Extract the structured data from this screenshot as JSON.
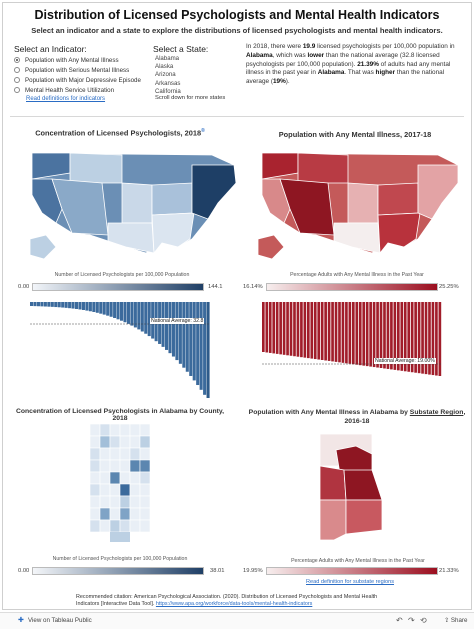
{
  "header": {
    "title": "Distribution of Licensed Psychologists and Mental Health Indicators",
    "subtitle": "Select an indicator and a state to explore the distributions of licensed psychologists and mental health indicators."
  },
  "indicator_panel": {
    "heading": "Select an Indicator:",
    "options": [
      {
        "label": "Population with Any Mental Illness",
        "selected": true
      },
      {
        "label": "Population with Serious Mental Illness",
        "selected": false
      },
      {
        "label": "Population with Major Depressive Episode",
        "selected": false
      },
      {
        "label": "Mental Health Service Utilization",
        "selected": false
      }
    ],
    "definitions_link": "Read definitions for indicators"
  },
  "state_panel": {
    "heading": "Select a State:",
    "states": [
      "Alabama",
      "Alaska",
      "Arizona",
      "Arkansas",
      "California"
    ],
    "scroll_note": "Scroll down for more states"
  },
  "summary": {
    "p1": "In 2018, there were ",
    "v1": "19.9",
    "p2": " licensed psychologists per 100,000 population in ",
    "state1": "Alabama",
    "p3": ", which was ",
    "cmp1": "lower",
    "p4": " than the national average (32.8 licensed psychologists per 100,000 population). ",
    "v2": "21.39%",
    "p5": " of adults had any mental illness in the past year in ",
    "state2": "Alabama",
    "p6": ". That was ",
    "cmp2": "higher",
    "p7": " than the national average (",
    "v3": "19%",
    "p8": ")."
  },
  "us_psych": {
    "title": "Concentration of Licensed Psychologists, 2018",
    "title_mark": "®",
    "legend_label": "Number of Licensed Psychologists per 100,000 Population",
    "min": "0.00",
    "max": "144.1",
    "avg_label": "National Average: 32.8",
    "color": "#2e5b8a"
  },
  "us_ami": {
    "title": "Population with Any Mental Illness, 2017-18",
    "legend_label": "Percentage Adults with Any Mental Illness in the Past Year",
    "min": "16.14%",
    "max": "25.25%",
    "avg_label": "National Average: 19.00%",
    "color": "#a11d2a"
  },
  "al_psych": {
    "title": "Concentration of Licensed Psychologists in Alabama by County, 2018",
    "legend_label": "Number of Licensed Psychologists per 100,000 Population",
    "min": "0.00",
    "max": "38.01"
  },
  "al_ami": {
    "title_a": "Population with Any Mental Illness in Alabama by ",
    "title_b": "Substate Region",
    "title_c": ", 2016-18",
    "legend_label": "Percentage Adults with Any Mental Illness in the Past Year",
    "min": "19.95%",
    "max": "21.33%",
    "substate_link": "Read definition for substate regions"
  },
  "footer": {
    "citation": "Recommended citation: American Psychological Association. (2020). Distribution of Licensed Psychologists and Mental Health Indicators [Interactive Data Tool]. ",
    "citation_url": "https://www.apa.org/workforce/data-tools/mental-health-indicators",
    "tableau_link": "View on Tableau Public",
    "share": "Share",
    "undo": "↶",
    "redo": "↷",
    "revert": "⟲"
  }
}
